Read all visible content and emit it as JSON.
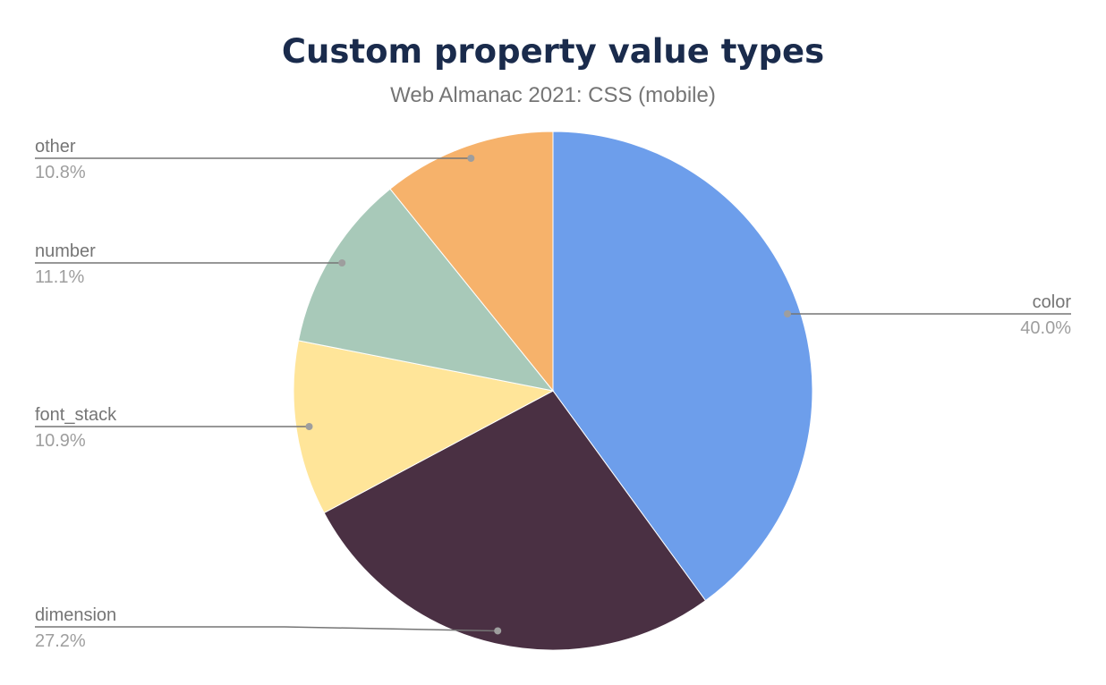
{
  "chart_data": {
    "type": "pie",
    "title": "Custom property value types",
    "subtitle": "Web Almanac 2021: CSS (mobile)",
    "start": "top, clockwise",
    "slices": [
      {
        "label": "color",
        "value": 40.0,
        "display": "40.0%",
        "color": "#6d9eeb"
      },
      {
        "label": "dimension",
        "value": 27.2,
        "display": "27.2%",
        "color": "#4a3043"
      },
      {
        "label": "font_stack",
        "value": 10.9,
        "display": "10.9%",
        "color": "#ffe599"
      },
      {
        "label": "number",
        "value": 11.1,
        "display": "11.1%",
        "color": "#a8c9b9"
      },
      {
        "label": "other",
        "value": 10.8,
        "display": "10.8%",
        "color": "#f6b26b"
      }
    ],
    "legend": "none (leader-line labels)"
  }
}
